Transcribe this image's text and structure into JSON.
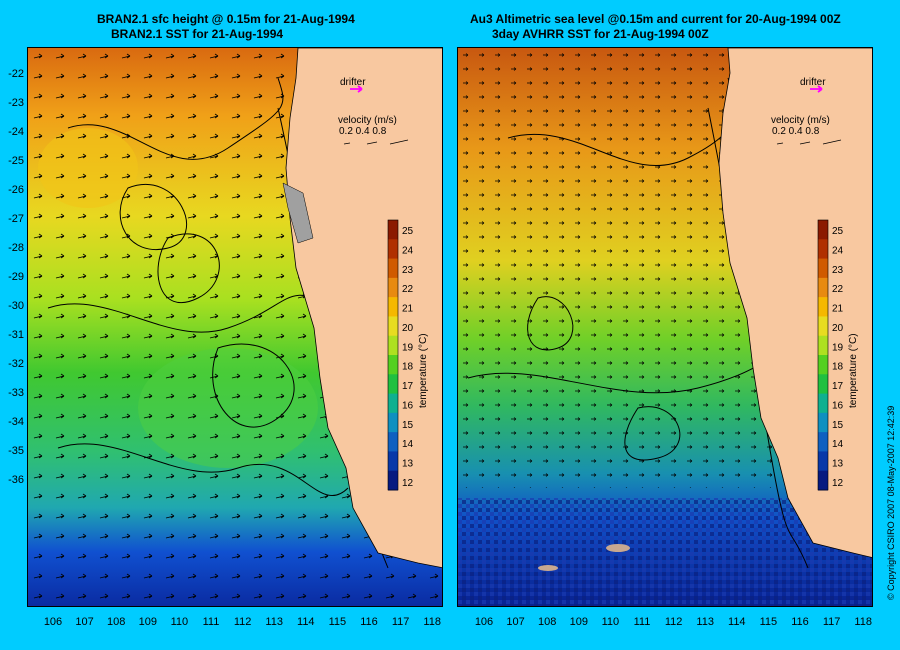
{
  "left_panel": {
    "title_line1": "BRAN2.1 sfc height @ 0.15m for 21-Aug-1994",
    "title_line2": "BRAN2.1 SST for 21-Aug-1994"
  },
  "right_panel": {
    "title_line1": "Au3 Altimetric sea level  @0.15m and current for 20-Aug-1994 00Z",
    "title_line2": "3day AVHRR SST for 21-Aug-1994 00Z"
  },
  "legend": {
    "drifter_label": "drifter",
    "velocity_label": "velocity (m/s)",
    "velocity_scale": "0.2 0.4 0.8",
    "colorbar_label": "temperature (°C)",
    "colorbar_ticks": [
      "25",
      "24",
      "23",
      "22",
      "21",
      "20",
      "19",
      "18",
      "17",
      "16",
      "15",
      "14",
      "13",
      "12"
    ],
    "colorbar_colors": [
      "#8b1a00",
      "#b03000",
      "#d05a00",
      "#e88a10",
      "#f5b800",
      "#e8dc20",
      "#aee020",
      "#55d020",
      "#20c040",
      "#10b090",
      "#1090c0",
      "#1060c0",
      "#0838a8",
      "#061a80"
    ]
  },
  "axes": {
    "latitudes": [
      "-22",
      "-23",
      "-24",
      "-25",
      "-26",
      "-27",
      "-28",
      "-29",
      "-30",
      "-31",
      "-32",
      "-33",
      "-34",
      "-35",
      "-36"
    ],
    "longitudes": [
      "106",
      "107",
      "108",
      "109",
      "110",
      "111",
      "112",
      "113",
      "114",
      "115",
      "116",
      "117",
      "118"
    ]
  },
  "credit": "© Copyright CSIRO 2007   08-May-2007 12:42:39"
}
